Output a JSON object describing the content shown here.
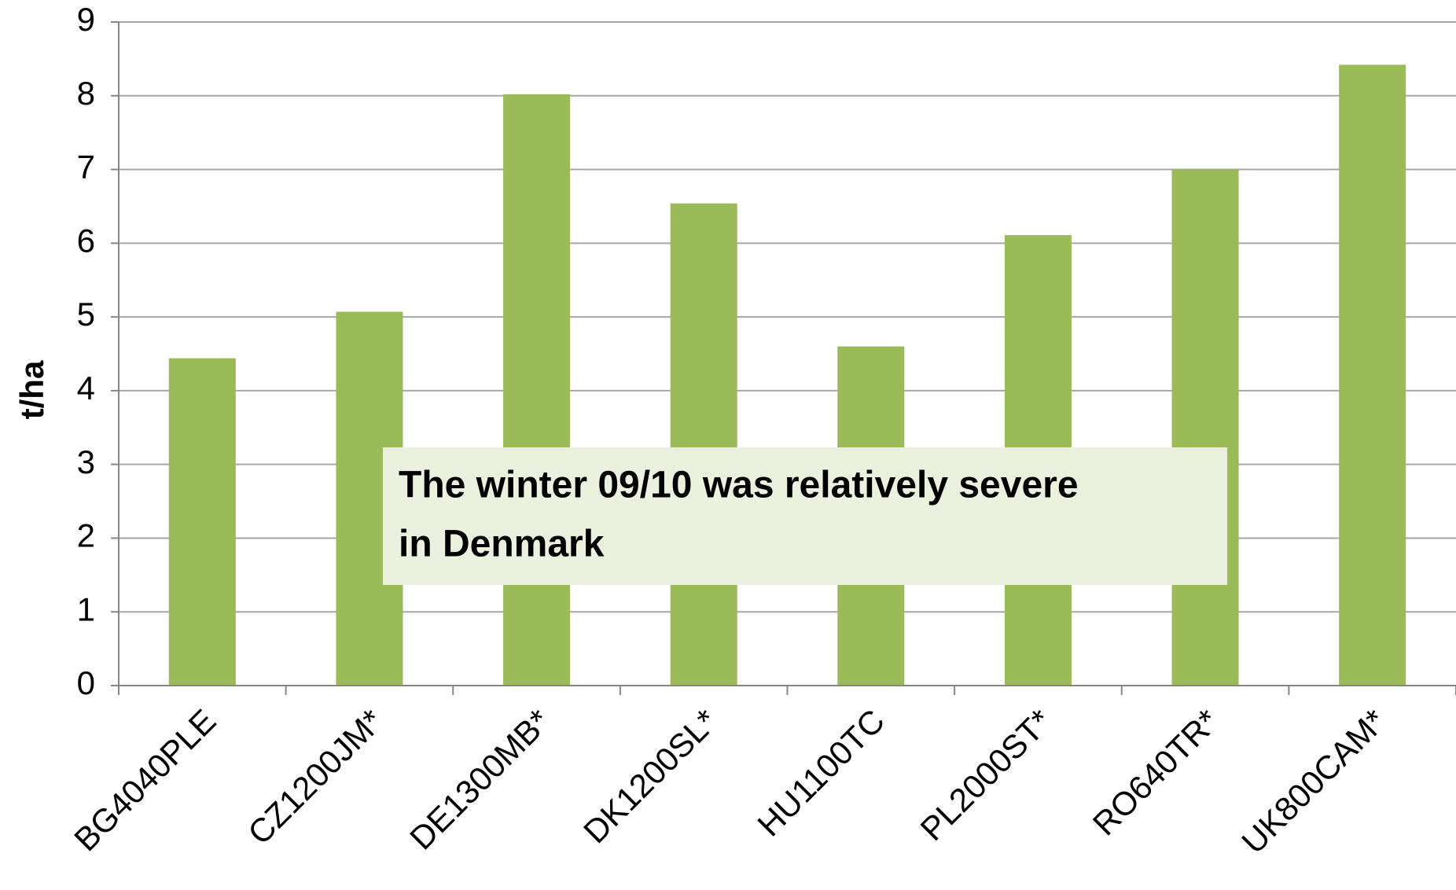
{
  "chart_data": {
    "type": "bar",
    "y_label": "t/ha",
    "categories": [
      "BG4040PLE",
      "CZ1200JM*",
      "DE1300MB*",
      "DK1200SL*",
      "HU1100TC",
      "PL2000ST*",
      "RO640TR*",
      "UK800CAM*"
    ],
    "values": [
      4.44,
      5.07,
      8.02,
      6.54,
      4.6,
      6.11,
      7.0,
      8.42
    ],
    "color": "#9bbb59",
    "ylim": [
      0,
      9
    ],
    "yticks": [
      0,
      1,
      2,
      3,
      4,
      5,
      6,
      7,
      8,
      9
    ],
    "grid": true,
    "annotation": [
      "The winter 09/10 was relatively severe",
      "in Denmark"
    ]
  }
}
